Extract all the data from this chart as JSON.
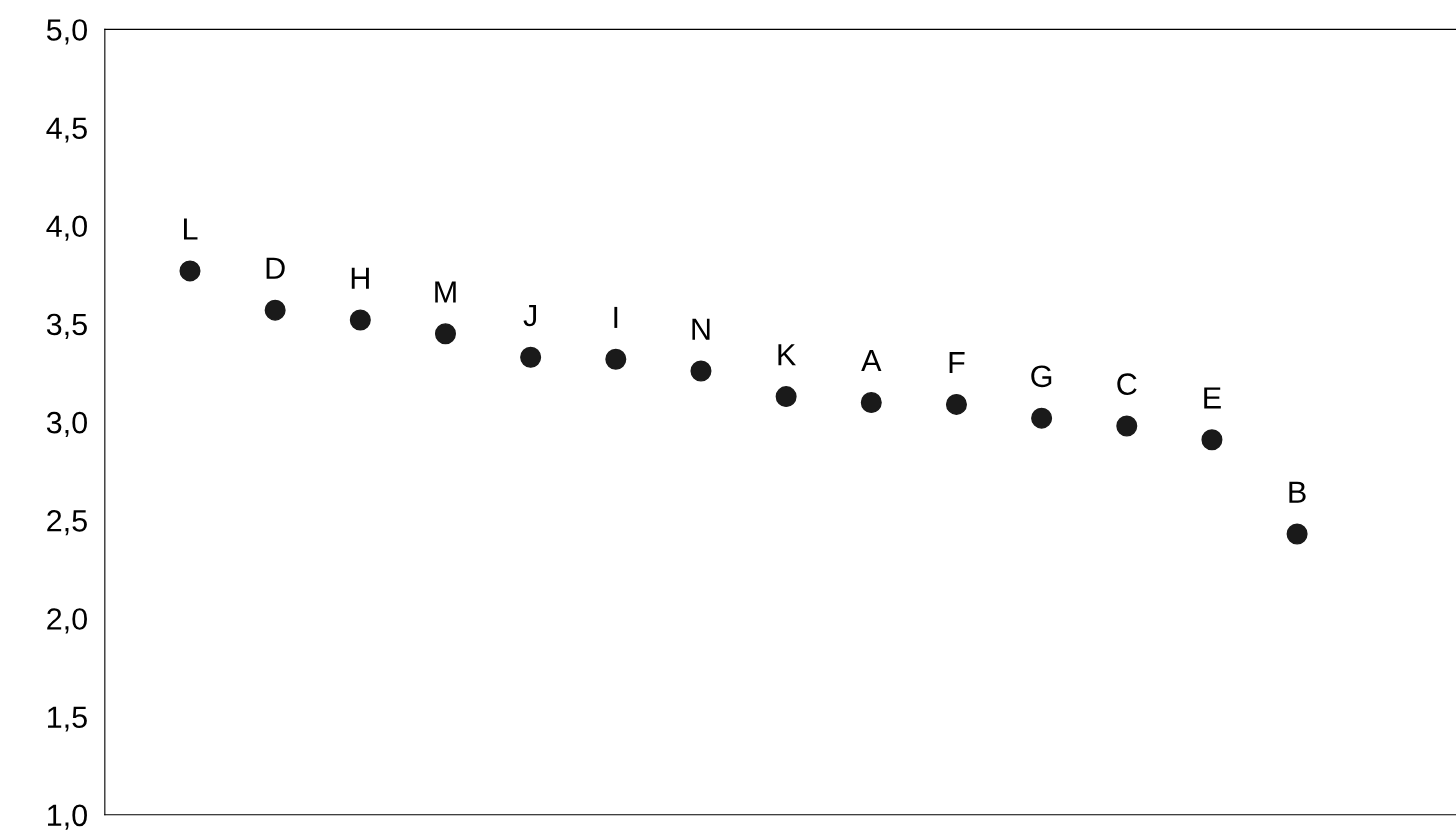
{
  "chart_data": {
    "type": "scatter",
    "categories": [
      "L",
      "D",
      "H",
      "M",
      "J",
      "I",
      "N",
      "K",
      "A",
      "F",
      "G",
      "C",
      "E",
      "B"
    ],
    "values": [
      3.77,
      3.57,
      3.52,
      3.45,
      3.33,
      3.32,
      3.26,
      3.13,
      3.1,
      3.09,
      3.02,
      2.98,
      2.91,
      2.43
    ],
    "color": "#1a1a1a",
    "marker": "circle",
    "ylim": [
      1.0,
      5.0
    ],
    "yticks": [
      {
        "value": 1.0,
        "label": "1,0"
      },
      {
        "value": 1.5,
        "label": "1,5"
      },
      {
        "value": 2.0,
        "label": "2,0"
      },
      {
        "value": 2.5,
        "label": "2,5"
      },
      {
        "value": 3.0,
        "label": "3,0"
      },
      {
        "value": 3.5,
        "label": "3,5"
      },
      {
        "value": 4.0,
        "label": "4,0"
      },
      {
        "value": 4.5,
        "label": "4,5"
      },
      {
        "value": 5.0,
        "label": "5,0"
      }
    ],
    "tick_labels": "y",
    "grid": false,
    "legend": false
  }
}
